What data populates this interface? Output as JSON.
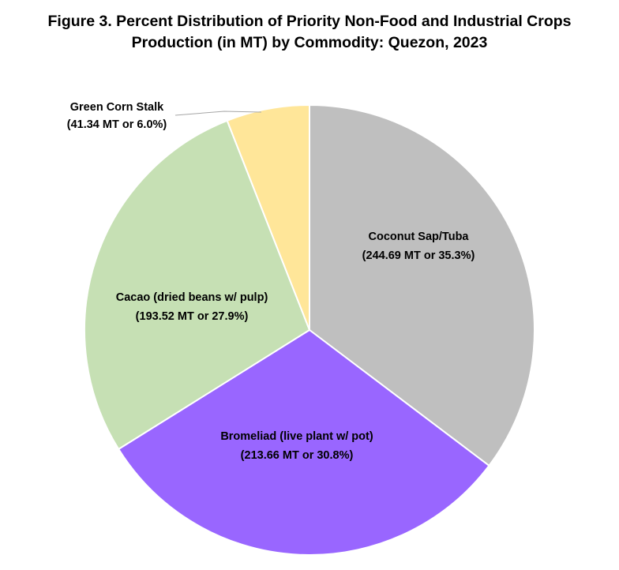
{
  "chart_data": {
    "type": "pie",
    "title_lines": [
      "Figure 3. Percent Distribution of Priority Non-Food and Industrial Crops",
      "Production (in MT) by Commodity: Quezon, 2023"
    ],
    "start": "12 o'clock",
    "direction": "clockwise",
    "slices": [
      {
        "name": "Coconut Sap/Tuba",
        "value": 244.69,
        "percent": 35.3,
        "color": "#bfbfbf",
        "label_lines": [
          "Coconut Sap/Tuba",
          "(244.69 MT or 35.3%)"
        ]
      },
      {
        "name": "Bromeliad (live plant w/ pot)",
        "value": 213.66,
        "percent": 30.8,
        "color": "#9966ff",
        "label_lines": [
          "Bromeliad (live plant w/ pot)",
          "(213.66 MT or 30.8%)"
        ]
      },
      {
        "name": "Cacao (dried beans w/ pulp)",
        "value": 193.52,
        "percent": 27.9,
        "color": "#c6e0b4",
        "label_lines": [
          "Cacao (dried beans w/ pulp)",
          "(193.52 MT or 27.9%)"
        ]
      },
      {
        "name": "Green Corn Stalk",
        "value": 41.34,
        "percent": 6.0,
        "color": "#ffe699",
        "label_lines": [
          "Green Corn Stalk",
          "(41.34 MT or 6.0%)"
        ]
      }
    ]
  }
}
